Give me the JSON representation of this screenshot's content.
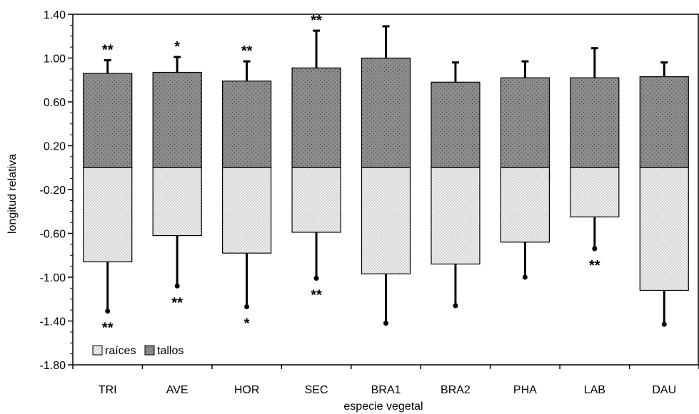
{
  "chart_data": {
    "type": "bar",
    "xlabel": "especie vegetal",
    "ylabel": "longitud relativa",
    "ylim": [
      -1.8,
      1.4
    ],
    "yticks": [
      "1.40",
      "1.00",
      "0.60",
      "0.20",
      "-0.20",
      "-0.60",
      "-1.00",
      "-1.40",
      "-1.80"
    ],
    "categories": [
      "TRI",
      "AVE",
      "HOR",
      "SEC",
      "BRA1",
      "BRA2",
      "PHA",
      "LAB",
      "DAU"
    ],
    "series": [
      {
        "name": "tallos",
        "color": "#8c8c8c",
        "values": [
          0.86,
          0.87,
          0.79,
          0.91,
          1.0,
          0.78,
          0.82,
          0.82,
          0.83
        ],
        "error_top": [
          0.98,
          1.01,
          0.97,
          1.25,
          1.29,
          0.96,
          0.97,
          1.09,
          0.96
        ],
        "significance": [
          "**",
          "*",
          "**",
          "**",
          "",
          "",
          "",
          "",
          ""
        ]
      },
      {
        "name": "raíces",
        "color": "#ececec",
        "values": [
          -0.86,
          -0.62,
          -0.78,
          -0.59,
          -0.97,
          -0.88,
          -0.68,
          -0.45,
          -1.12
        ],
        "error_bottom": [
          -1.31,
          -1.08,
          -1.27,
          -1.01,
          -1.42,
          -1.26,
          -1.0,
          -0.74,
          -1.43
        ],
        "significance": [
          "**",
          "**",
          "*",
          "**",
          "",
          "",
          "",
          "**",
          ""
        ]
      }
    ],
    "legend": {
      "position": "bottom-left",
      "items": [
        "raíces",
        "tallos"
      ]
    },
    "grid": false
  }
}
